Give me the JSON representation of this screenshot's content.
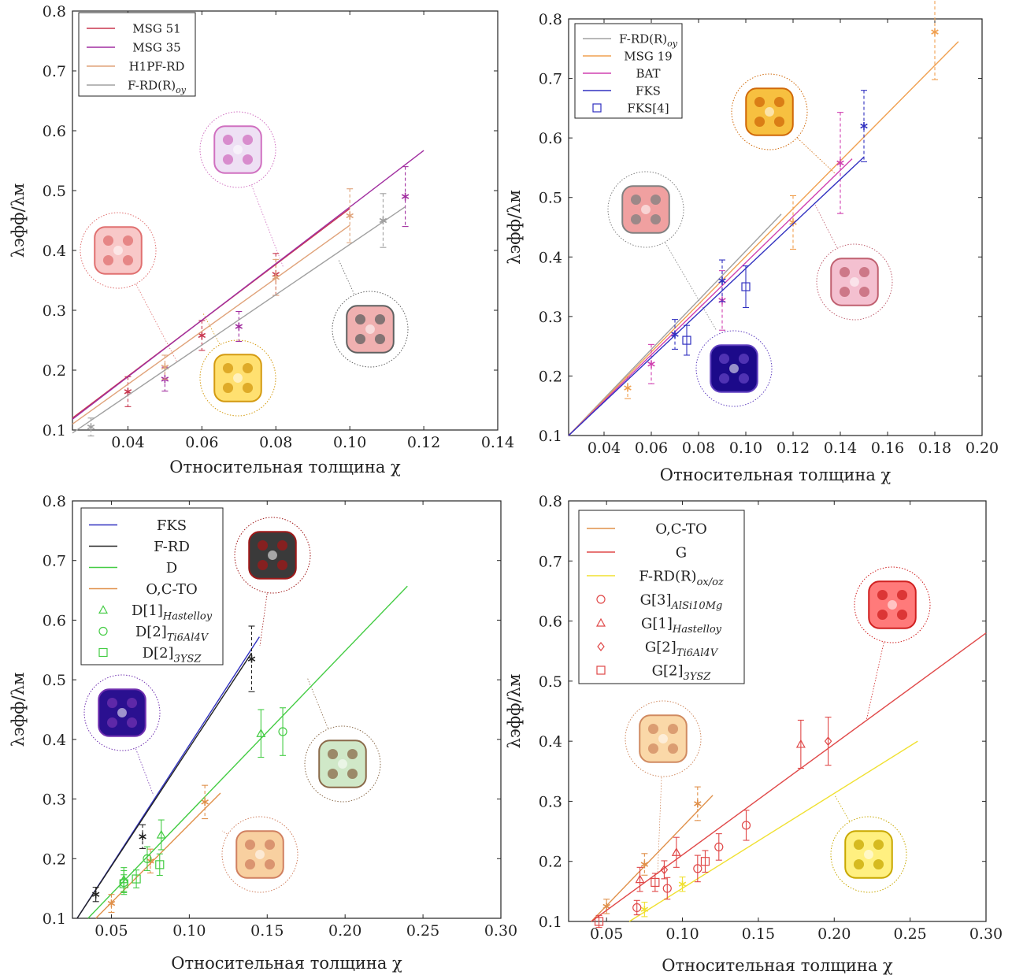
{
  "chart_data": [
    {
      "type": "line",
      "xlabel": "Относительная толщина χ",
      "ylabel": "λэфф/λм",
      "xlim": [
        0.025,
        0.14
      ],
      "ylim": [
        0.1,
        0.8
      ],
      "xticks": [
        0.04,
        0.06,
        0.08,
        0.1,
        0.12,
        0.14
      ],
      "xtick_labels": [
        "0.04",
        "0.06",
        "0.08",
        "0.10",
        "0.12",
        "0.14"
      ],
      "yticks": [
        0.1,
        0.2,
        0.3,
        0.4,
        0.5,
        0.6,
        0.7,
        0.8
      ],
      "ytick_labels": [
        "0.1",
        "0.2",
        "0.3",
        "0.4",
        "0.5",
        "0.6",
        "0.7",
        "0.8"
      ],
      "legend_position": "top-left",
      "legend": [
        {
          "label": "MSG 51",
          "sub": "",
          "color": "#c8374f",
          "kind": "line"
        },
        {
          "label": "MSG 35",
          "sub": "",
          "color": "#a12fa0",
          "kind": "line"
        },
        {
          "label": "H1PF-RD",
          "sub": "",
          "color": "#e0a37a",
          "kind": "line"
        },
        {
          "label": "F-RD(R)",
          "sub": "oy",
          "color": "#a0a0a0",
          "kind": "line"
        }
      ],
      "series": [
        {
          "color": "#c8374f",
          "line_x": [
            0.025,
            0.1
          ],
          "line_y": [
            0.12,
            0.47
          ],
          "points": [
            {
              "x": 0.04,
              "y": 0.164,
              "err": 0.025
            },
            {
              "x": 0.06,
              "y": 0.258,
              "err": 0.025
            },
            {
              "x": 0.08,
              "y": 0.36,
              "err": 0.035
            }
          ]
        },
        {
          "color": "#a12fa0",
          "line_x": [
            0.025,
            0.12
          ],
          "line_y": [
            0.118,
            0.567
          ],
          "points": [
            {
              "x": 0.05,
              "y": 0.185,
              "err": 0.02
            },
            {
              "x": 0.07,
              "y": 0.273,
              "err": 0.025
            },
            {
              "x": 0.115,
              "y": 0.49,
              "err": 0.05
            }
          ]
        },
        {
          "color": "#e0a37a",
          "line_x": [
            0.025,
            0.1
          ],
          "line_y": [
            0.11,
            0.442
          ],
          "points": [
            {
              "x": 0.05,
              "y": 0.205,
              "err": 0.02
            },
            {
              "x": 0.08,
              "y": 0.355,
              "err": 0.03
            },
            {
              "x": 0.1,
              "y": 0.458,
              "err": 0.045
            }
          ]
        },
        {
          "color": "#a0a0a0",
          "line_x": [
            0.025,
            0.115
          ],
          "line_y": [
            0.095,
            0.473
          ],
          "points": [
            {
              "x": 0.03,
              "y": 0.105,
              "err": 0.015
            },
            {
              "x": 0.109,
              "y": 0.45,
              "err": 0.045
            }
          ]
        }
      ]
    },
    {
      "type": "line",
      "xlabel": "Относительная толщина χ",
      "ylabel": "λэфф/λм",
      "xlim": [
        0.025,
        0.2
      ],
      "ylim": [
        0.1,
        0.8
      ],
      "xticks": [
        0.04,
        0.06,
        0.08,
        0.1,
        0.12,
        0.14,
        0.16,
        0.18,
        0.2
      ],
      "xtick_labels": [
        "0.04",
        "0.06",
        "0.08",
        "0.10",
        "0.12",
        "0.14",
        "0.16",
        "0.18",
        "0.20"
      ],
      "yticks": [
        0.1,
        0.2,
        0.3,
        0.4,
        0.5,
        0.6,
        0.7,
        0.8
      ],
      "ytick_labels": [
        "0.1",
        "0.2",
        "0.3",
        "0.4",
        "0.5",
        "0.6",
        "0.7",
        "0.8"
      ],
      "legend_position": "top-left",
      "legend": [
        {
          "label": "F-RD(R)",
          "sub": "oy",
          "color": "#a0a0a0",
          "kind": "line"
        },
        {
          "label": "MSG 19",
          "sub": "",
          "color": "#f0a050",
          "kind": "line"
        },
        {
          "label": "BAT",
          "sub": "",
          "color": "#d040b0",
          "kind": "line"
        },
        {
          "label": "FKS",
          "sub": "",
          "color": "#3030c0",
          "kind": "line"
        },
        {
          "label": "FKS[4]",
          "sub": "",
          "color": "#3030c0",
          "kind": "square"
        }
      ],
      "series": [
        {
          "color": "#a0a0a0",
          "line_x": [
            0.025,
            0.115
          ],
          "line_y": [
            0.1,
            0.472
          ],
          "points": []
        },
        {
          "color": "#f0a050",
          "line_x": [
            0.025,
            0.19
          ],
          "line_y": [
            0.1,
            0.762
          ],
          "points": [
            {
              "x": 0.05,
              "y": 0.18,
              "err": 0.018
            },
            {
              "x": 0.12,
              "y": 0.458,
              "err": 0.045
            },
            {
              "x": 0.18,
              "y": 0.778,
              "err": 0.08
            }
          ]
        },
        {
          "color": "#d040b0",
          "line_x": [
            0.025,
            0.145
          ],
          "line_y": [
            0.1,
            0.565
          ],
          "points": [
            {
              "x": 0.06,
              "y": 0.22,
              "err": 0.033
            },
            {
              "x": 0.09,
              "y": 0.327,
              "err": 0.05
            },
            {
              "x": 0.14,
              "y": 0.558,
              "err": 0.085
            }
          ]
        },
        {
          "color": "#3030c0",
          "line_x": [
            0.025,
            0.15
          ],
          "line_y": [
            0.1,
            0.568
          ],
          "points": [
            {
              "x": 0.07,
              "y": 0.27,
              "err": 0.025
            },
            {
              "x": 0.09,
              "y": 0.36,
              "err": 0.035
            },
            {
              "x": 0.15,
              "y": 0.62,
              "err": 0.06
            }
          ]
        },
        {
          "color": "#3030c0",
          "line_x": [],
          "line_y": [],
          "marker": "square",
          "points": [
            {
              "x": 0.075,
              "y": 0.26,
              "err": 0.025
            },
            {
              "x": 0.1,
              "y": 0.35,
              "err": 0.035
            }
          ]
        }
      ]
    },
    {
      "type": "line",
      "xlabel": "Относительная толщина χ",
      "ylabel": "λэфф/λм",
      "xlim": [
        0.025,
        0.3
      ],
      "ylim": [
        0.1,
        0.8
      ],
      "xticks": [
        0.05,
        0.1,
        0.15,
        0.2,
        0.25,
        0.3
      ],
      "xtick_labels": [
        "0.05",
        "0.10",
        "0.15",
        "0.20",
        "0.25",
        "0.30"
      ],
      "yticks": [
        0.1,
        0.2,
        0.3,
        0.4,
        0.5,
        0.6,
        0.7,
        0.8
      ],
      "ytick_labels": [
        "0.1",
        "0.2",
        "0.3",
        "0.4",
        "0.5",
        "0.6",
        "0.7",
        "0.8"
      ],
      "legend_position": "top-left",
      "legend": [
        {
          "label": "FKS",
          "sub": "",
          "color": "#3030c0",
          "kind": "line"
        },
        {
          "label": "F-RD",
          "sub": "",
          "color": "#222222",
          "kind": "line"
        },
        {
          "label": "D",
          "sub": "",
          "color": "#44cc44",
          "kind": "line"
        },
        {
          "label": "O,C-TO",
          "sub": "",
          "color": "#e0904a",
          "kind": "line"
        },
        {
          "label": "D[1]",
          "sub": "Hastelloy",
          "color": "#44cc44",
          "kind": "triangle"
        },
        {
          "label": "D[2]",
          "sub": "Ti6Al4V",
          "color": "#44cc44",
          "kind": "circle"
        },
        {
          "label": "D[2]",
          "sub": "3YSZ",
          "color": "#44cc44",
          "kind": "square"
        }
      ],
      "series": [
        {
          "color": "#3030c0",
          "line_x": [
            0.028,
            0.145
          ],
          "line_y": [
            0.1,
            0.572
          ],
          "points": []
        },
        {
          "color": "#222222",
          "line_x": [
            0.028,
            0.14
          ],
          "line_y": [
            0.1,
            0.545
          ],
          "points": [
            {
              "x": 0.04,
              "y": 0.14,
              "err": 0.012
            },
            {
              "x": 0.07,
              "y": 0.237,
              "err": 0.02
            },
            {
              "x": 0.14,
              "y": 0.535,
              "err": 0.055
            }
          ]
        },
        {
          "color": "#44cc44",
          "line_x": [
            0.035,
            0.24
          ],
          "line_y": [
            0.1,
            0.657
          ],
          "points": []
        },
        {
          "color": "#e0904a",
          "line_x": [
            0.04,
            0.12
          ],
          "line_y": [
            0.1,
            0.31
          ],
          "points": [
            {
              "x": 0.05,
              "y": 0.125,
              "err": 0.015
            },
            {
              "x": 0.075,
              "y": 0.196,
              "err": 0.02
            },
            {
              "x": 0.11,
              "y": 0.295,
              "err": 0.028
            }
          ]
        },
        {
          "color": "#44cc44",
          "line_x": [],
          "line_y": [],
          "marker": "triangle",
          "points": [
            {
              "x": 0.058,
              "y": 0.165,
              "err": 0.02
            },
            {
              "x": 0.082,
              "y": 0.24,
              "err": 0.025
            },
            {
              "x": 0.146,
              "y": 0.41,
              "err": 0.04
            }
          ]
        },
        {
          "color": "#44cc44",
          "line_x": [],
          "line_y": [],
          "marker": "circle",
          "points": [
            {
              "x": 0.058,
              "y": 0.16,
              "err": 0.02
            },
            {
              "x": 0.073,
              "y": 0.2,
              "err": 0.02
            },
            {
              "x": 0.16,
              "y": 0.413,
              "err": 0.04
            }
          ]
        },
        {
          "color": "#44cc44",
          "line_x": [],
          "line_y": [],
          "marker": "square",
          "points": [
            {
              "x": 0.058,
              "y": 0.158,
              "err": 0.015
            },
            {
              "x": 0.066,
              "y": 0.166,
              "err": 0.015
            },
            {
              "x": 0.081,
              "y": 0.19,
              "err": 0.018
            }
          ]
        }
      ]
    },
    {
      "type": "line",
      "xlabel": "Относительная толщина χ",
      "ylabel": "λэфф/λм",
      "xlim": [
        0.025,
        0.3
      ],
      "ylim": [
        0.1,
        0.8
      ],
      "xticks": [
        0.05,
        0.1,
        0.15,
        0.2,
        0.25,
        0.3
      ],
      "xtick_labels": [
        "0.05",
        "0.10",
        "0.15",
        "0.20",
        "0.25",
        "0.30"
      ],
      "yticks": [
        0.1,
        0.2,
        0.3,
        0.4,
        0.5,
        0.6,
        0.7,
        0.8
      ],
      "ytick_labels": [
        "0.1",
        "0.2",
        "0.3",
        "0.4",
        "0.5",
        "0.6",
        "0.7",
        "0.8"
      ],
      "legend_position": "top-left",
      "legend": [
        {
          "label": "O,C-TO",
          "sub": "",
          "color": "#e0904a",
          "kind": "line"
        },
        {
          "label": "G",
          "sub": "",
          "color": "#e04848",
          "kind": "line"
        },
        {
          "label": "F-RD(R)",
          "sub": "ox/oz",
          "color": "#f0e030",
          "kind": "line"
        },
        {
          "label": "G[3]",
          "sub": "AlSi10Mg",
          "color": "#e04848",
          "kind": "circle"
        },
        {
          "label": "G[1]",
          "sub": "Hastelloy",
          "color": "#e04848",
          "kind": "triangle"
        },
        {
          "label": "G[2]",
          "sub": "Ti6Al4V",
          "color": "#e04848",
          "kind": "diamond"
        },
        {
          "label": "G[2]",
          "sub": "3YSZ",
          "color": "#e04848",
          "kind": "square"
        }
      ],
      "series": [
        {
          "color": "#e0904a",
          "line_x": [
            0.04,
            0.12
          ],
          "line_y": [
            0.1,
            0.31
          ],
          "points": [
            {
              "x": 0.05,
              "y": 0.125,
              "err": 0.012
            },
            {
              "x": 0.075,
              "y": 0.195,
              "err": 0.018
            },
            {
              "x": 0.11,
              "y": 0.296,
              "err": 0.028
            }
          ]
        },
        {
          "color": "#e04848",
          "line_x": [
            0.04,
            0.3
          ],
          "line_y": [
            0.1,
            0.58
          ],
          "points": []
        },
        {
          "color": "#f0e030",
          "line_x": [
            0.065,
            0.255
          ],
          "line_y": [
            0.1,
            0.4
          ],
          "points": [
            {
              "x": 0.075,
              "y": 0.12,
              "err": 0.012
            },
            {
              "x": 0.1,
              "y": 0.162,
              "err": 0.012
            }
          ]
        },
        {
          "color": "#e04848",
          "line_x": [],
          "line_y": [],
          "marker": "circle",
          "points": [
            {
              "x": 0.07,
              "y": 0.123,
              "err": 0.012
            },
            {
              "x": 0.09,
              "y": 0.155,
              "err": 0.018
            },
            {
              "x": 0.11,
              "y": 0.188,
              "err": 0.022
            },
            {
              "x": 0.124,
              "y": 0.224,
              "err": 0.022
            },
            {
              "x": 0.142,
              "y": 0.26,
              "err": 0.025
            }
          ]
        },
        {
          "color": "#e04848",
          "line_x": [],
          "line_y": [],
          "marker": "triangle",
          "points": [
            {
              "x": 0.072,
              "y": 0.17,
              "err": 0.02
            },
            {
              "x": 0.096,
              "y": 0.215,
              "err": 0.025
            },
            {
              "x": 0.178,
              "y": 0.395,
              "err": 0.04
            }
          ]
        },
        {
          "color": "#e04848",
          "line_x": [],
          "line_y": [],
          "marker": "diamond",
          "points": [
            {
              "x": 0.088,
              "y": 0.186,
              "err": 0.015
            },
            {
              "x": 0.196,
              "y": 0.4,
              "err": 0.04
            }
          ]
        },
        {
          "color": "#e04848",
          "line_x": [],
          "line_y": [],
          "marker": "square",
          "points": [
            {
              "x": 0.045,
              "y": 0.1,
              "err": 0.01
            },
            {
              "x": 0.082,
              "y": 0.165,
              "err": 0.015
            },
            {
              "x": 0.115,
              "y": 0.2,
              "err": 0.018
            }
          ]
        }
      ]
    }
  ],
  "thumbnail_style": {
    "icon_names": [
      "pink-shell-structure-icon",
      "lilac-shell-structure-icon",
      "gold-lattice-structure-icon",
      "twisted-strut-structure-icon",
      "orange-gyroid-structure-icon",
      "pink-lattice-structure-icon",
      "blue-lattice-structure-icon",
      "black-gyroid-structure-icon",
      "green-triangle-structure-icon",
      "cream-shell-structure-icon",
      "red-tpms-structure-icon",
      "yellow-shell-structure-icon"
    ]
  }
}
